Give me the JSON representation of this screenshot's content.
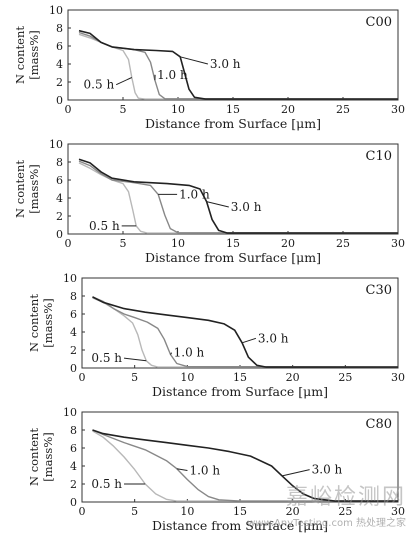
{
  "chart_data": [
    {
      "type": "line",
      "title": "C00",
      "xlabel": "Distance from Surface [μm]",
      "ylabel": [
        "N content",
        "[mass%]"
      ],
      "xlim": [
        0,
        30
      ],
      "ylim": [
        0,
        10
      ],
      "xticks": [
        0,
        5,
        10,
        15,
        20,
        25,
        30
      ],
      "yticks": [
        0,
        2,
        4,
        6,
        8,
        10
      ],
      "series": [
        {
          "name": "0.5 h",
          "color": "#b8b8b8",
          "x": [
            1,
            2,
            3,
            4,
            5,
            5.5,
            5.8,
            6.1,
            6.4,
            7,
            30
          ],
          "y": [
            7.3,
            6.9,
            6.4,
            5.9,
            5.5,
            4.5,
            2.5,
            0.8,
            0.2,
            0.1,
            0.1
          ]
        },
        {
          "name": "1.0 h",
          "color": "#888888",
          "x": [
            1,
            2,
            3,
            4,
            6,
            7,
            7.5,
            7.9,
            8.3,
            8.8,
            30
          ],
          "y": [
            7.5,
            7.1,
            6.4,
            5.9,
            5.6,
            5.3,
            4.2,
            2.2,
            0.6,
            0.15,
            0.1
          ]
        },
        {
          "name": "3.0 h",
          "color": "#222222",
          "x": [
            1,
            2,
            3,
            4,
            6,
            8,
            9.5,
            10.2,
            10.6,
            11,
            11.5,
            12.5,
            30
          ],
          "y": [
            7.7,
            7.4,
            6.4,
            5.9,
            5.6,
            5.5,
            5.4,
            4.8,
            3.0,
            1.2,
            0.3,
            0.1,
            0.1
          ]
        }
      ],
      "curve_labels": [
        {
          "text": "0.5 h",
          "at": [
            4.2,
            1.7
          ]
        },
        {
          "text": "1.0 h",
          "at": [
            8.1,
            2.8
          ]
        },
        {
          "text": "3.0 h",
          "at": [
            12.9,
            4.0
          ]
        }
      ]
    },
    {
      "type": "line",
      "title": "C10",
      "xlabel": "Distance from Surface [μm]",
      "ylabel": [
        "N content",
        "[mass%]"
      ],
      "xlim": [
        0,
        30
      ],
      "ylim": [
        0,
        10
      ],
      "xticks": [
        0,
        5,
        10,
        15,
        20,
        25,
        30
      ],
      "yticks": [
        0,
        2,
        4,
        6,
        8,
        10
      ],
      "series": [
        {
          "name": "0.5 h",
          "color": "#b8b8b8",
          "x": [
            1,
            2,
            3,
            4,
            5,
            5.5,
            5.9,
            6.2,
            6.6,
            7.2,
            30
          ],
          "y": [
            7.9,
            7.3,
            6.6,
            6.0,
            5.6,
            4.7,
            2.6,
            0.9,
            0.3,
            0.1,
            0.1
          ]
        },
        {
          "name": "1.0 h",
          "color": "#888888",
          "x": [
            1,
            2,
            3,
            4,
            6,
            7.5,
            8.2,
            8.8,
            9.3,
            10,
            30
          ],
          "y": [
            8.1,
            7.6,
            6.7,
            6.0,
            5.7,
            5.4,
            4.4,
            2.1,
            0.6,
            0.15,
            0.1
          ]
        },
        {
          "name": "3.0 h",
          "color": "#222222",
          "x": [
            1,
            2,
            3,
            4,
            6,
            9,
            11,
            12,
            12.6,
            13.1,
            13.7,
            14.5,
            30
          ],
          "y": [
            8.3,
            7.9,
            6.9,
            6.2,
            5.8,
            5.6,
            5.4,
            5.0,
            3.6,
            1.6,
            0.4,
            0.1,
            0.1
          ]
        }
      ],
      "curve_labels": [
        {
          "text": "0.5 h",
          "at": [
            4.7,
            0.9
          ]
        },
        {
          "text": "1.0 h",
          "at": [
            10.1,
            4.4
          ]
        },
        {
          "text": "3.0 h",
          "at": [
            14.8,
            3.0
          ]
        }
      ]
    },
    {
      "type": "line",
      "title": "C30",
      "xlabel": "Distance from Surface [μm]",
      "ylabel": [
        "N content",
        "[mass%]"
      ],
      "xlim": [
        0,
        30
      ],
      "ylim": [
        0,
        10
      ],
      "xticks": [
        0,
        5,
        10,
        15,
        20,
        25,
        30
      ],
      "yticks": [
        0,
        2,
        4,
        6,
        8,
        10
      ],
      "series": [
        {
          "name": "0.5 h",
          "color": "#b8b8b8",
          "x": [
            1,
            2,
            3,
            4,
            4.8,
            5.3,
            5.7,
            6.1,
            6.6,
            7.2,
            30
          ],
          "y": [
            7.8,
            7.3,
            6.6,
            5.8,
            5.0,
            3.7,
            2.0,
            0.8,
            0.3,
            0.1,
            0.1
          ]
        },
        {
          "name": "1.0 h",
          "color": "#888888",
          "x": [
            1,
            2,
            3,
            4,
            5,
            6.2,
            7.2,
            7.8,
            8.4,
            9,
            10,
            30
          ],
          "y": [
            7.9,
            7.4,
            6.6,
            6.0,
            5.6,
            5.1,
            4.4,
            3.2,
            1.5,
            0.5,
            0.15,
            0.1
          ]
        },
        {
          "name": "3.0 h",
          "color": "#222222",
          "x": [
            1,
            2,
            4,
            6,
            8,
            10,
            12,
            13.5,
            14.5,
            15.2,
            15.8,
            16.6,
            17.5,
            30
          ],
          "y": [
            7.9,
            7.3,
            6.6,
            6.2,
            5.9,
            5.6,
            5.3,
            4.9,
            4.2,
            2.8,
            1.2,
            0.3,
            0.1,
            0.1
          ]
        }
      ],
      "curve_labels": [
        {
          "text": "0.5 h",
          "at": [
            3.8,
            1.1
          ]
        },
        {
          "text": "1.0 h",
          "at": [
            8.7,
            1.7
          ]
        },
        {
          "text": "3.0 h",
          "at": [
            16.7,
            3.3
          ]
        }
      ]
    },
    {
      "type": "line",
      "title": "C80",
      "xlabel": "Distance from Surface [μm]",
      "ylabel": [
        "N content",
        "[mass%]"
      ],
      "xlim": [
        0,
        30
      ],
      "ylim": [
        0,
        10
      ],
      "xticks": [
        0,
        5,
        10,
        15,
        20,
        25,
        30
      ],
      "yticks": [
        0,
        2,
        4,
        6,
        8,
        10
      ],
      "series": [
        {
          "name": "0.5 h",
          "color": "#b8b8b8",
          "x": [
            1,
            2,
            3,
            4,
            5,
            6,
            7,
            8,
            9,
            30
          ],
          "y": [
            7.9,
            7.2,
            6.2,
            5.0,
            3.6,
            2.0,
            0.9,
            0.3,
            0.1,
            0.1
          ]
        },
        {
          "name": "1.0 h",
          "color": "#888888",
          "x": [
            1,
            2,
            4,
            6,
            8,
            9,
            10,
            11,
            12,
            13,
            15,
            30
          ],
          "y": [
            8.0,
            7.5,
            6.6,
            5.8,
            4.6,
            3.7,
            2.5,
            1.4,
            0.6,
            0.25,
            0.1,
            0.1
          ]
        },
        {
          "name": "3.0 h",
          "color": "#222222",
          "x": [
            1,
            2,
            4,
            6,
            8,
            10,
            12,
            14,
            16,
            18,
            19,
            20,
            21,
            22,
            24,
            30
          ],
          "y": [
            8.0,
            7.6,
            7.2,
            6.9,
            6.6,
            6.3,
            6.0,
            5.6,
            5.1,
            4.0,
            2.9,
            1.8,
            0.9,
            0.4,
            0.1,
            0.1
          ]
        }
      ],
      "curve_labels": [
        {
          "text": "0.5 h",
          "at": [
            3.8,
            2.0
          ]
        },
        {
          "text": "1.0 h",
          "at": [
            10.2,
            3.5
          ]
        },
        {
          "text": "3.0 h",
          "at": [
            21.8,
            3.6
          ]
        }
      ]
    }
  ],
  "watermark": {
    "main": "嘉峪检测网",
    "sub": "www.AnyTesting.com 热处理之家"
  }
}
